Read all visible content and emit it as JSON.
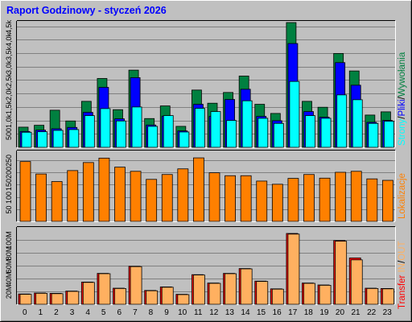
{
  "title": "Raport Godzinowy - ",
  "title_period": "styczeń 2026",
  "colors": {
    "bg": "#c0c0c0",
    "panel": "#c0c0c0",
    "title": "#0000ff",
    "hits": "#008040",
    "files": "#0000ff",
    "pages": "#00ffff",
    "sites": "#ff8000",
    "kb_in": "#ff0000",
    "kb_out": "#ffb060"
  },
  "chart_data": [
    {
      "type": "bar",
      "title": "Strony/Pliki/Wywołania",
      "categories": [
        "0",
        "1",
        "2",
        "3",
        "4",
        "5",
        "6",
        "7",
        "8",
        "9",
        "10",
        "11",
        "12",
        "13",
        "14",
        "15",
        "16",
        "17",
        "18",
        "19",
        "20",
        "21",
        "22",
        "23"
      ],
      "ylim": [
        0,
        4700
      ],
      "yticks": [
        "500",
        "1,0k",
        "1,5k",
        "2,0k",
        "2,5k",
        "3,0k",
        "3,5k",
        "4,0k",
        "4,5k"
      ],
      "ytick_values": [
        500,
        1000,
        1500,
        2000,
        2500,
        3000,
        3500,
        4000,
        4500
      ],
      "series": [
        {
          "name": "Wywołania",
          "values": [
            750,
            820,
            1380,
            980,
            1710,
            2560,
            1400,
            2870,
            1070,
            1540,
            780,
            2130,
            1640,
            2040,
            2650,
            1600,
            1260,
            4640,
            1710,
            1490,
            3490,
            2840,
            1200,
            1320
          ]
        },
        {
          "name": "Pliki",
          "values": [
            590,
            640,
            690,
            740,
            1300,
            2230,
            1060,
            2590,
            830,
            1160,
            610,
            1600,
            1150,
            1780,
            2160,
            1150,
            990,
            3860,
            1330,
            1120,
            3150,
            2310,
            930,
            1000
          ]
        },
        {
          "name": "Strony",
          "values": [
            560,
            580,
            630,
            660,
            1180,
            1440,
            980,
            1500,
            780,
            1180,
            570,
            1450,
            1330,
            1000,
            1730,
            1080,
            890,
            2450,
            1180,
            1080,
            1950,
            1770,
            890,
            970
          ]
        }
      ]
    },
    {
      "type": "bar",
      "title": "Lokalizacje",
      "categories": [
        "0",
        "1",
        "2",
        "3",
        "4",
        "5",
        "6",
        "7",
        "8",
        "9",
        "10",
        "11",
        "12",
        "13",
        "14",
        "15",
        "16",
        "17",
        "18",
        "19",
        "20",
        "21",
        "22",
        "23"
      ],
      "ylim": [
        0,
        290
      ],
      "yticks": [
        "50",
        "100",
        "150",
        "200",
        "250"
      ],
      "ytick_values": [
        50,
        100,
        150,
        200,
        250
      ],
      "series": [
        {
          "name": "Lokalizacje",
          "values": [
            245,
            194,
            163,
            208,
            241,
            259,
            222,
            205,
            172,
            192,
            215,
            260,
            199,
            187,
            187,
            165,
            152,
            176,
            192,
            177,
            201,
            205,
            174,
            168
          ]
        }
      ]
    },
    {
      "type": "bar",
      "title": "Transfer",
      "title_parts": [
        "Transfer",
        "IN",
        "/",
        "OUT"
      ],
      "categories": [
        "0",
        "1",
        "2",
        "3",
        "4",
        "5",
        "6",
        "7",
        "8",
        "9",
        "10",
        "11",
        "12",
        "13",
        "14",
        "15",
        "16",
        "17",
        "18",
        "19",
        "20",
        "21",
        "22",
        "23"
      ],
      "ylim": [
        0,
        120
      ],
      "yticks": [
        "20M",
        "40M",
        "60M",
        "80M",
        "100M"
      ],
      "ytick_values": [
        20,
        40,
        60,
        80,
        100
      ],
      "series": [
        {
          "name": "IN",
          "values": [
            16.0,
            17.5,
            17.0,
            20.5,
            34.5,
            48.0,
            25.0,
            59.0,
            21.5,
            27.0,
            15.5,
            46.0,
            33.0,
            48.0,
            55.5,
            36.0,
            24.0,
            110.0,
            33.0,
            30.0,
            99.0,
            72.0,
            25.0,
            24.5
          ]
        },
        {
          "name": "OUT",
          "values": [
            15.5,
            17.0,
            16.5,
            20.0,
            34.0,
            47.5,
            24.5,
            58.5,
            21.0,
            26.5,
            15.0,
            45.5,
            32.5,
            47.5,
            55.0,
            35.5,
            23.5,
            109.0,
            32.5,
            29.5,
            98.0,
            69.0,
            24.5,
            24.0
          ]
        }
      ]
    }
  ]
}
